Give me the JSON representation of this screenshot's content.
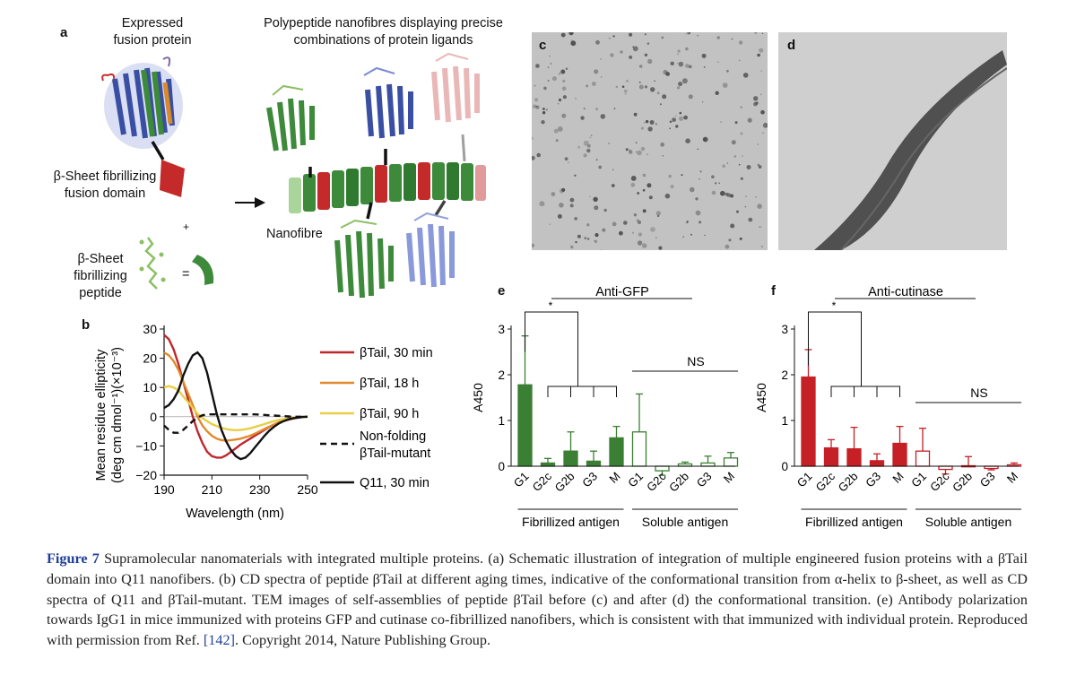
{
  "panel_a": {
    "label": "a",
    "expressed_title": [
      "Expressed",
      "fusion protein"
    ],
    "nanofibre_title": [
      "Polypeptide nanofibres displaying precise",
      "combinations of protein ligands"
    ],
    "fusion_domain_label": [
      "β-Sheet fibrillizing",
      "fusion domain"
    ],
    "plus": "+",
    "peptide_label": [
      "β-Sheet",
      "fibrillizing",
      "peptide"
    ],
    "equals": "=",
    "nanofibre_label": "Nanofibre",
    "colors": {
      "green": "#3d8a3a",
      "blue": "#3a4fa3",
      "red": "#c42a2a",
      "pink": "#e29a9a",
      "light_green": "#a9d49a"
    }
  },
  "panel_c": {
    "label": "c"
  },
  "panel_d": {
    "label": "d"
  },
  "panel_b": {
    "label": "b",
    "ylabel_line1": "Mean residue ellipticity",
    "ylabel_line2": "(deg cm dmol⁻¹)(×10⁻³)",
    "xlabel": "Wavelength (nm)",
    "x_ticks": [
      "190",
      "210",
      "230",
      "250"
    ],
    "y_ticks": [
      "30",
      "20",
      "10",
      "0",
      "−10",
      "−20"
    ],
    "legend": [
      {
        "label": [
          "βTail, 30 min"
        ],
        "color": "#c0272d",
        "dash": false
      },
      {
        "label": [
          "βTail, 18 h"
        ],
        "color": "#e08a2c",
        "dash": false
      },
      {
        "label": [
          "βTail, 90 h"
        ],
        "color": "#e9cf45",
        "dash": false
      },
      {
        "label": [
          "Non-folding",
          "βTail-mutant"
        ],
        "color": "#111111",
        "dash": true
      },
      {
        "label": [
          "Q11, 30 min"
        ],
        "color": "#111111",
        "dash": false
      }
    ]
  },
  "chart_data": [
    {
      "type": "line",
      "xlabel": "Wavelength (nm)",
      "ylabel": "Mean residue ellipticity (deg cm dmol⁻¹)(×10⁻³)",
      "xlim": [
        190,
        250
      ],
      "ylim": [
        -20,
        30
      ],
      "grid": false,
      "legend_position": "right",
      "series": [
        {
          "name": "βTail, 30 min",
          "color": "#c0272d",
          "x": [
            190,
            192,
            194,
            196,
            198,
            200,
            202,
            204,
            206,
            208,
            210,
            212,
            214,
            216,
            218,
            220,
            222,
            224,
            226,
            228,
            230,
            232,
            234,
            236,
            238,
            240,
            242,
            244,
            246,
            248,
            250
          ],
          "y": [
            28,
            26.5,
            23,
            18,
            12,
            6,
            0,
            -5,
            -9,
            -12,
            -13.5,
            -14,
            -14,
            -13.2,
            -12,
            -10.8,
            -9.5,
            -8.5,
            -7.5,
            -6.5,
            -5.5,
            -4.5,
            -3.5,
            -2.7,
            -2,
            -1.4,
            -1,
            -0.6,
            -0.3,
            -0.1,
            0
          ]
        },
        {
          "name": "βTail, 18 h",
          "color": "#e08a2c",
          "x": [
            190,
            192,
            194,
            196,
            198,
            200,
            202,
            204,
            206,
            208,
            210,
            212,
            214,
            216,
            218,
            220,
            222,
            224,
            226,
            228,
            230,
            232,
            234,
            236,
            238,
            240,
            242,
            244,
            246,
            248,
            250
          ],
          "y": [
            22,
            21,
            19,
            16,
            12,
            8,
            4,
            0,
            -3,
            -5,
            -6.5,
            -7.5,
            -8,
            -8.2,
            -8,
            -7.8,
            -7.5,
            -7,
            -6.5,
            -5.8,
            -5,
            -4.2,
            -3.4,
            -2.6,
            -1.9,
            -1.3,
            -0.8,
            -0.5,
            -0.3,
            -0.1,
            0
          ]
        },
        {
          "name": "βTail, 90 h",
          "color": "#e9cf45",
          "x": [
            190,
            192,
            194,
            196,
            198,
            200,
            202,
            204,
            206,
            208,
            210,
            212,
            214,
            216,
            218,
            220,
            222,
            224,
            226,
            228,
            230,
            232,
            234,
            236,
            238,
            240,
            242,
            244,
            246,
            248,
            250
          ],
          "y": [
            10,
            10.5,
            10,
            9,
            7,
            5,
            3,
            1,
            -0.5,
            -1.5,
            -2.5,
            -3.2,
            -3.8,
            -4.2,
            -4.5,
            -4.6,
            -4.5,
            -4.3,
            -4,
            -3.5,
            -3,
            -2.5,
            -2,
            -1.5,
            -1.1,
            -0.8,
            -0.5,
            -0.3,
            -0.2,
            -0.1,
            0
          ]
        },
        {
          "name": "Non-folding βTail-mutant",
          "color": "#111111",
          "dash": true,
          "x": [
            190,
            192,
            194,
            196,
            198,
            200,
            202,
            204,
            206,
            208,
            210,
            212,
            214,
            216,
            218,
            220,
            222,
            224,
            226,
            228,
            230,
            232,
            234,
            236,
            238,
            240,
            242,
            244,
            246,
            248,
            250
          ],
          "y": [
            -3,
            -4.5,
            -5.5,
            -5.5,
            -4.5,
            -3,
            -1.5,
            -0.3,
            0.5,
            0.8,
            0.8,
            0.8,
            0.8,
            0.8,
            0.8,
            0.8,
            0.8,
            0.8,
            0.8,
            0.8,
            0.7,
            0.6,
            0.5,
            0.4,
            0.3,
            0.2,
            0.1,
            0,
            0,
            0,
            0
          ]
        },
        {
          "name": "Q11, 30 min",
          "color": "#111111",
          "x": [
            190,
            192,
            194,
            196,
            198,
            200,
            202,
            204,
            206,
            208,
            210,
            212,
            214,
            216,
            218,
            220,
            222,
            224,
            226,
            228,
            230,
            232,
            234,
            236,
            238,
            240,
            242,
            244,
            246,
            248,
            250
          ],
          "y": [
            3,
            4,
            6,
            9,
            14,
            18,
            21,
            22,
            20,
            15,
            8,
            1,
            -4.5,
            -8.5,
            -11.5,
            -13.5,
            -14.5,
            -14,
            -12.5,
            -10.5,
            -8.5,
            -6.5,
            -4.8,
            -3.4,
            -2.3,
            -1.5,
            -0.9,
            -0.5,
            -0.3,
            -0.1,
            0
          ]
        }
      ]
    },
    {
      "type": "bar",
      "panel": "e",
      "title": "Anti-GFP",
      "ylabel": "A450",
      "ylim": [
        0,
        3
      ],
      "y_ticks": [
        "0",
        "1",
        "2",
        "3"
      ],
      "categories": [
        "G1",
        "G2c",
        "G2b",
        "G3",
        "M",
        "G1",
        "G2c",
        "G2b",
        "G3",
        "M"
      ],
      "groups": [
        {
          "name": "Fibrillized antigen",
          "style": "filled",
          "color": "#3a7f34",
          "values": [
            1.78,
            0.07,
            0.33,
            0.11,
            0.62
          ],
          "errors": [
            1.07,
            0.1,
            0.42,
            0.22,
            0.25
          ]
        },
        {
          "name": "Soluble antigen",
          "style": "open",
          "color": "#3a7f34",
          "values": [
            0.75,
            -0.1,
            0.05,
            0.07,
            0.18
          ],
          "errors": [
            0.83,
            0.1,
            0.04,
            0.15,
            0.12
          ]
        }
      ],
      "significance": [
        "*",
        "NS"
      ]
    },
    {
      "type": "bar",
      "panel": "f",
      "title": "Anti-cutinase",
      "ylabel": "A450",
      "ylim": [
        0,
        3
      ],
      "y_ticks": [
        "0",
        "1",
        "2",
        "3"
      ],
      "categories": [
        "G1",
        "G2c",
        "G2b",
        "G3",
        "M",
        "G1",
        "G2c",
        "G2b",
        "G3",
        "M"
      ],
      "groups": [
        {
          "name": "Fibrillized antigen",
          "style": "filled",
          "color": "#c42026",
          "values": [
            1.95,
            0.4,
            0.38,
            0.12,
            0.5
          ],
          "errors": [
            0.6,
            0.18,
            0.47,
            0.15,
            0.37
          ]
        },
        {
          "name": "Soluble antigen",
          "style": "open",
          "color": "#c42026",
          "values": [
            0.33,
            -0.07,
            0.01,
            -0.05,
            0.03
          ],
          "errors": [
            0.5,
            0.1,
            0.2,
            0.03,
            0.04
          ]
        }
      ],
      "significance": [
        "*",
        "NS"
      ]
    }
  ],
  "caption": {
    "figure_label": "Figure 7",
    "text_1": " Supramolecular nanomaterials with integrated multiple proteins. (a) Schematic illustration of integration of multiple engineered fusion proteins with a βTail domain into Q11 nanofibers. (b) CD spectra of peptide βTail at different aging times, indicative of the conformational transition from α-helix to β-sheet, as well as CD spectra of Q11 and βTail-mutant. TEM images of self-assemblies of peptide βTail before (c) and after (d) the conformational transition. (e) Antibody polarization towards IgG1 in mice immunized with proteins GFP and cutinase co-fibrillized nanofibers, which is consistent with that immunized with individual protein. Reproduced with permission from Ref. ",
    "ref": "[142]",
    "text_2": ". Copyright 2014, Nature Publishing Group."
  }
}
